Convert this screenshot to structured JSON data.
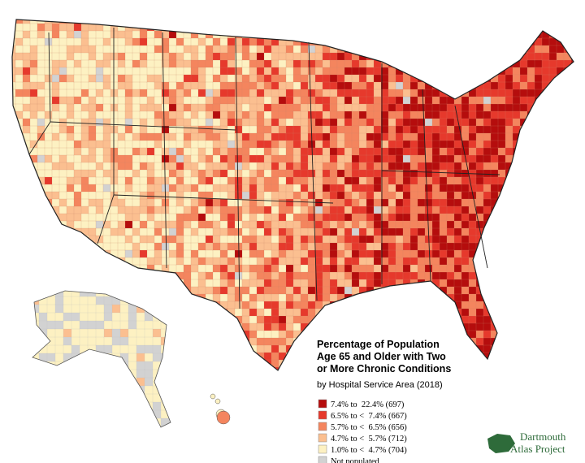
{
  "title_lines": [
    "Percentage of Population",
    "Age 65 and Older with Two",
    "or More Chronic Conditions"
  ],
  "subtitle": "by Hospital Service Area (2018)",
  "legend": [
    {
      "label": "7.4% to  22.4% (697)",
      "color": "#b50d0d"
    },
    {
      "label": "6.5% to <  7.4% (667)",
      "color": "#e6392c"
    },
    {
      "label": "5.7% to <  6.5% (656)",
      "color": "#f4855e"
    },
    {
      "label": "4.7% to <  5.7% (712)",
      "color": "#fbbf90"
    },
    {
      "label": "1.0% to <  4.7% (704)",
      "color": "#fdf1c2"
    },
    {
      "label": "Not populated",
      "color": "#d2d2d2"
    }
  ],
  "logo": [
    "Dartmouth",
    "Atlas Project"
  ]
}
